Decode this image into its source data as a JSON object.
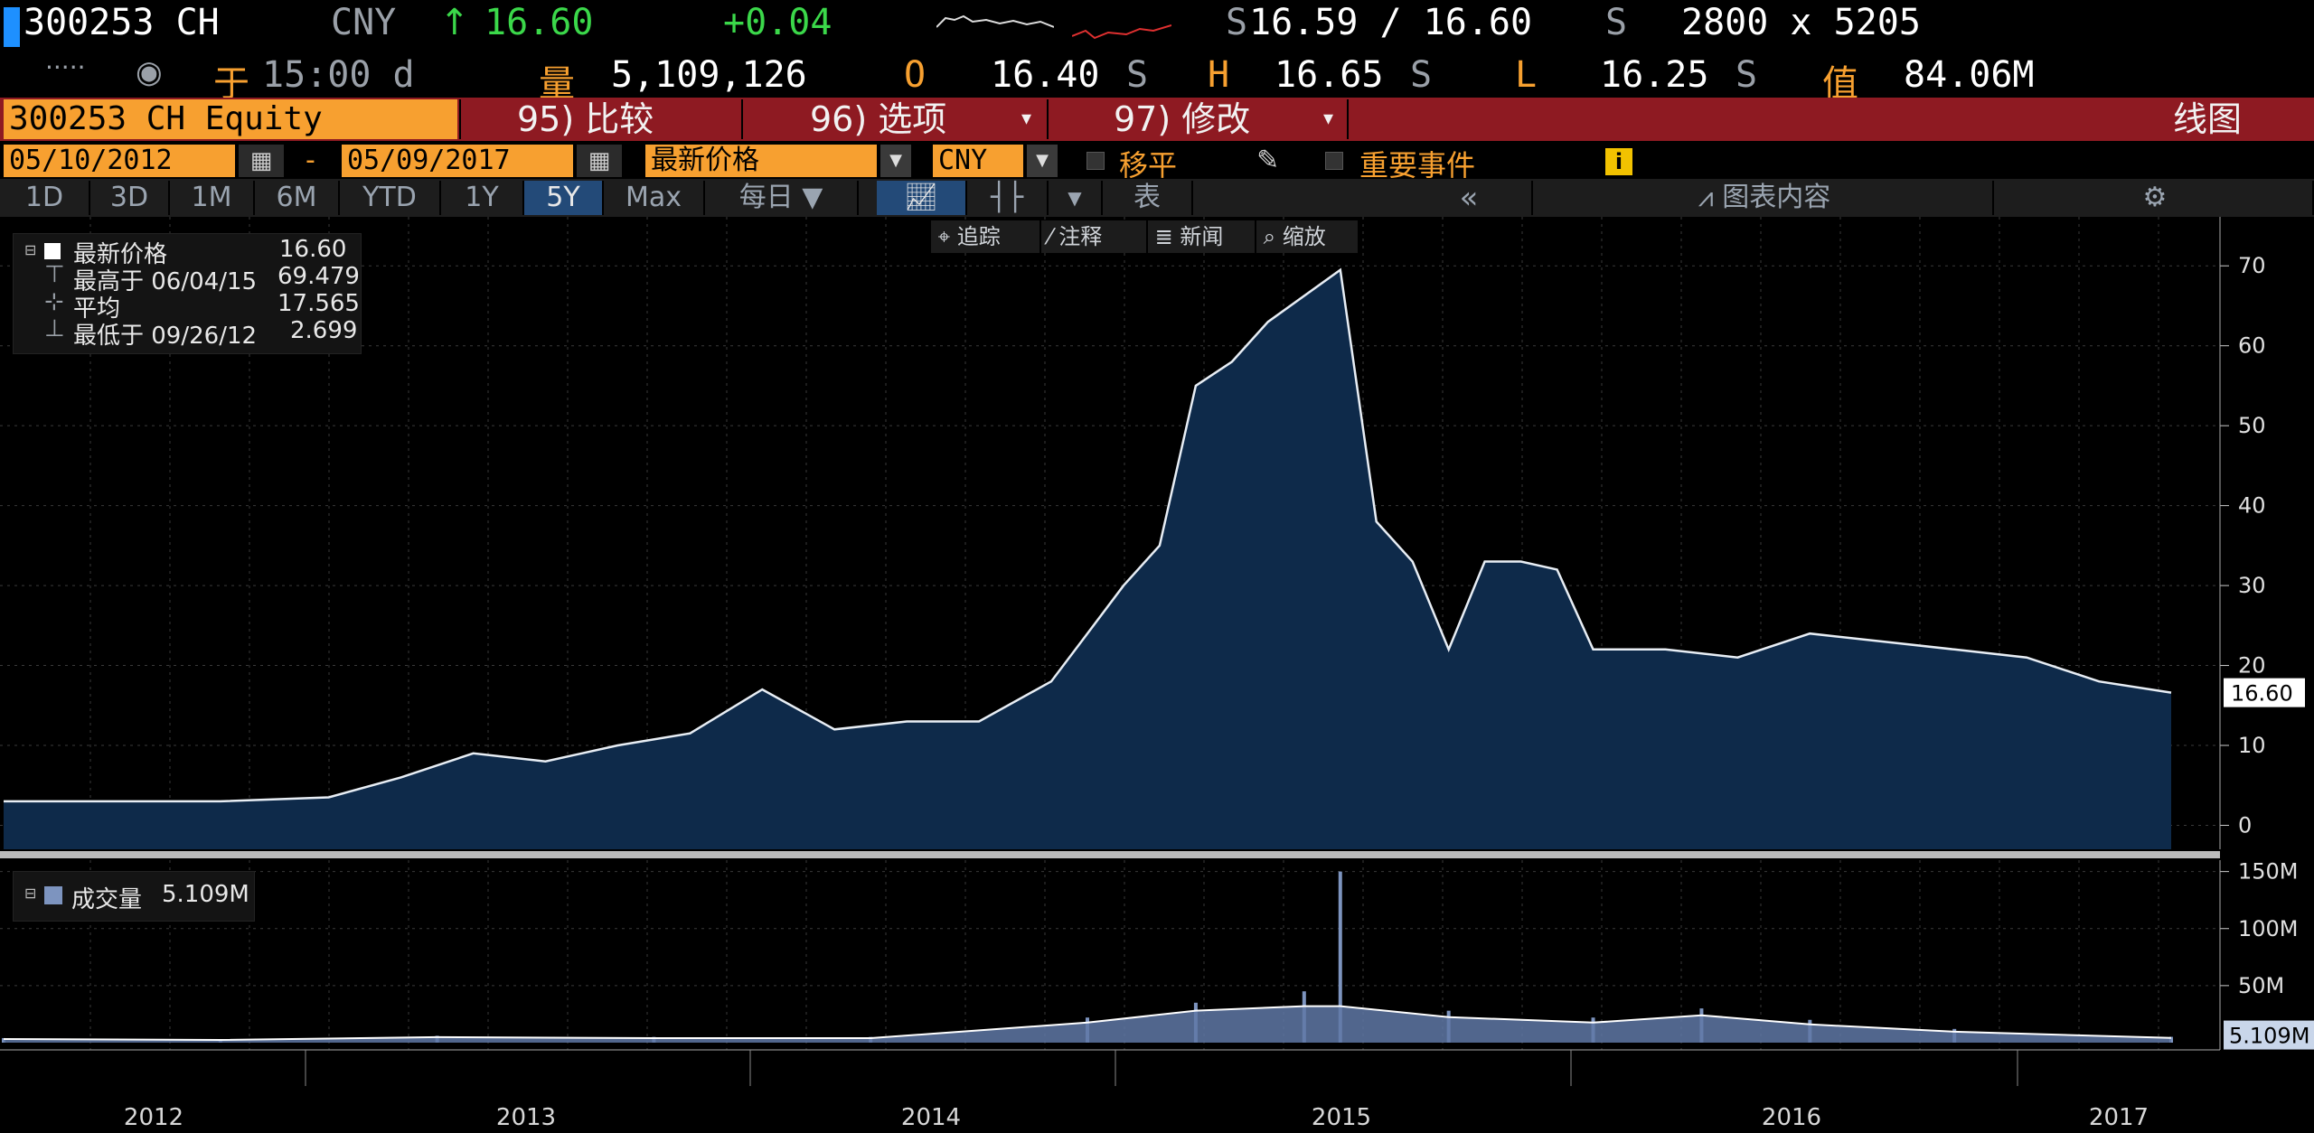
{
  "quote": {
    "ticker": "300253 CH",
    "currency": "CNY",
    "arrow": "↑",
    "last": "16.60",
    "change": "+0.04",
    "bid_ask": "16.59 / 16.60",
    "bid_prefix": "S",
    "ask_suffix": "S",
    "size": "2800 x 5205",
    "time_label": "于",
    "time": "15:00 d",
    "volume_label": "量",
    "volume": "5,109,126",
    "open_label": "O",
    "open": "16.40",
    "high_label": "H",
    "high": "16.65",
    "low_label": "L",
    "low": "16.25",
    "value_label": "值",
    "value": "84.06M",
    "s_flag": "S",
    "dots": ".....",
    "clock_icon": "gauge-icon"
  },
  "function_bar": {
    "security": "300253 CH Equity",
    "compare": "95) 比较",
    "options": "96) 选项",
    "edit": "97) 修改",
    "chart_type": "线图"
  },
  "controls": {
    "start_date": "05/10/2012",
    "dash": "-",
    "end_date": "05/09/2017",
    "field": "最新价格",
    "currency": "CNY",
    "moving_avg": "移平",
    "key_events": "重要事件",
    "info": "i"
  },
  "range_buttons": [
    "1D",
    "3D",
    "1M",
    "6M",
    "YTD",
    "1Y",
    "5Y",
    "Max"
  ],
  "active_range": "5Y",
  "frequency": "每日 ▼",
  "table_label": "表",
  "collapse_label": "«",
  "chart_contents": "图表内容",
  "tools": {
    "track": "追踪",
    "annotate": "注释",
    "news": "新闻",
    "zoom": "缩放"
  },
  "price_legend": {
    "last_label": "最新价格",
    "last_value": "16.60",
    "high_label": "最高于 06/04/15",
    "high_value": "69.479",
    "avg_label": "平均",
    "avg_value": "17.565",
    "low_label": "最低于 09/26/12",
    "low_value": "2.699"
  },
  "volume_legend": {
    "label": "成交量",
    "value": "5.109M"
  },
  "chart_data": [
    {
      "type": "area",
      "series": [
        {
          "name": "最新价格",
          "x": [
            "2012-05",
            "2012-08",
            "2012-11",
            "2013-02",
            "2013-04",
            "2013-06",
            "2013-08",
            "2013-10",
            "2013-12",
            "2014-02",
            "2014-04",
            "2014-06",
            "2014-08",
            "2014-10",
            "2014-11",
            "2014-12",
            "2015-01",
            "2015-02",
            "2015-03",
            "2015-04",
            "2015-06",
            "2015-07",
            "2015-08",
            "2015-09",
            "2015-10",
            "2015-11",
            "2015-12",
            "2016-01",
            "2016-03",
            "2016-05",
            "2016-07",
            "2016-09",
            "2016-11",
            "2017-01",
            "2017-03",
            "2017-05"
          ],
          "values": [
            3,
            3,
            3,
            3.5,
            6,
            9,
            8,
            10,
            11.5,
            17,
            12,
            13,
            13,
            18,
            24,
            30,
            35,
            55,
            58,
            63,
            69.5,
            38,
            33,
            22,
            33,
            33,
            32,
            22,
            22,
            21,
            24,
            23,
            22,
            21,
            18,
            16.6
          ]
        }
      ],
      "y_ticks": [
        0,
        10,
        20,
        30,
        40,
        50,
        60,
        70
      ],
      "ylim": [
        -3,
        75
      ],
      "last_label": "16.60",
      "grid": true
    },
    {
      "type": "bar",
      "series": [
        {
          "name": "成交量",
          "x": [
            "2012-05",
            "2012-11",
            "2013-05",
            "2013-11",
            "2014-05",
            "2014-11",
            "2015-02",
            "2015-05",
            "2015-06",
            "2015-09",
            "2016-01",
            "2016-04",
            "2016-07",
            "2016-11",
            "2017-05"
          ],
          "values": [
            4,
            3,
            6,
            5,
            5,
            22,
            35,
            45,
            150,
            28,
            22,
            30,
            20,
            12,
            5.1
          ]
        }
      ],
      "y_ticks": [
        "50M",
        "100M",
        "150M"
      ],
      "ylim": [
        0,
        160
      ],
      "last_label": "5.109M",
      "grid": true
    }
  ],
  "x_axis_years": [
    "2012",
    "2013",
    "2014",
    "2015",
    "2016",
    "2017"
  ]
}
